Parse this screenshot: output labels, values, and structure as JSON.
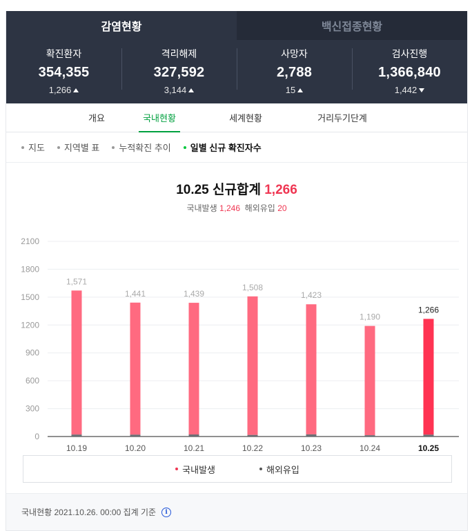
{
  "top_tabs": [
    {
      "label": "감염현황",
      "active": true
    },
    {
      "label": "백신접종현황",
      "active": false
    }
  ],
  "stats": [
    {
      "label": "확진환자",
      "value": "354,355",
      "delta": "1,266",
      "direction": "up"
    },
    {
      "label": "격리해제",
      "value": "327,592",
      "delta": "3,144",
      "direction": "up"
    },
    {
      "label": "사망자",
      "value": "2,788",
      "delta": "15",
      "direction": "up"
    },
    {
      "label": "검사진행",
      "value": "1,366,840",
      "delta": "1,442",
      "direction": "down"
    }
  ],
  "sub_tabs": [
    {
      "label": "개요",
      "active": false
    },
    {
      "label": "국내현황",
      "active": true
    },
    {
      "label": "세계현황",
      "active": false
    },
    {
      "label": "거리두기단계",
      "active": false
    }
  ],
  "filters": [
    {
      "label": "지도",
      "active": false
    },
    {
      "label": "지역별 표",
      "active": false
    },
    {
      "label": "누적확진 추이",
      "active": false
    },
    {
      "label": "일별 신규 확진자수",
      "active": true
    }
  ],
  "chart_header": {
    "title_prefix": "10.25 신규합계",
    "total": "1,266",
    "domestic_label": "국내발생",
    "domestic_value": "1,246",
    "overseas_label": "해외유입",
    "overseas_value": "20"
  },
  "chart_data": {
    "type": "bar",
    "categories": [
      "10.19",
      "10.20",
      "10.21",
      "10.22",
      "10.23",
      "10.24",
      "10.25"
    ],
    "series": [
      {
        "name": "국내발생",
        "values": [
          1550,
          1421,
          1417,
          1491,
          1400,
          1176,
          1246
        ]
      },
      {
        "name": "해외유입",
        "values": [
          21,
          20,
          22,
          17,
          23,
          14,
          20
        ]
      }
    ],
    "totals": [
      1571,
      1441,
      1439,
      1508,
      1423,
      1190,
      1266
    ],
    "total_labels": [
      "1,571",
      "1,441",
      "1,439",
      "1,508",
      "1,423",
      "1,190",
      "1,266"
    ],
    "highlight_index": 6,
    "yticks": [
      0,
      300,
      600,
      900,
      1200,
      1500,
      1800,
      2100
    ],
    "ylim": [
      0,
      2100
    ],
    "grid": true,
    "stacked": true,
    "colors": {
      "domestic": "#ff6a80",
      "domestic_highlight": "#ff3352",
      "overseas": "#6b6e74",
      "grid": "#eceef1",
      "label": "#aaaaaa",
      "label_highlight": "#222222"
    }
  },
  "legend": [
    {
      "label": "국내발생",
      "color": "#ef3652"
    },
    {
      "label": "해외유입",
      "color": "#555555"
    }
  ],
  "footer": {
    "text": "국내현황 2021.10.26. 00:00 집계 기준",
    "info_glyph": "i"
  }
}
